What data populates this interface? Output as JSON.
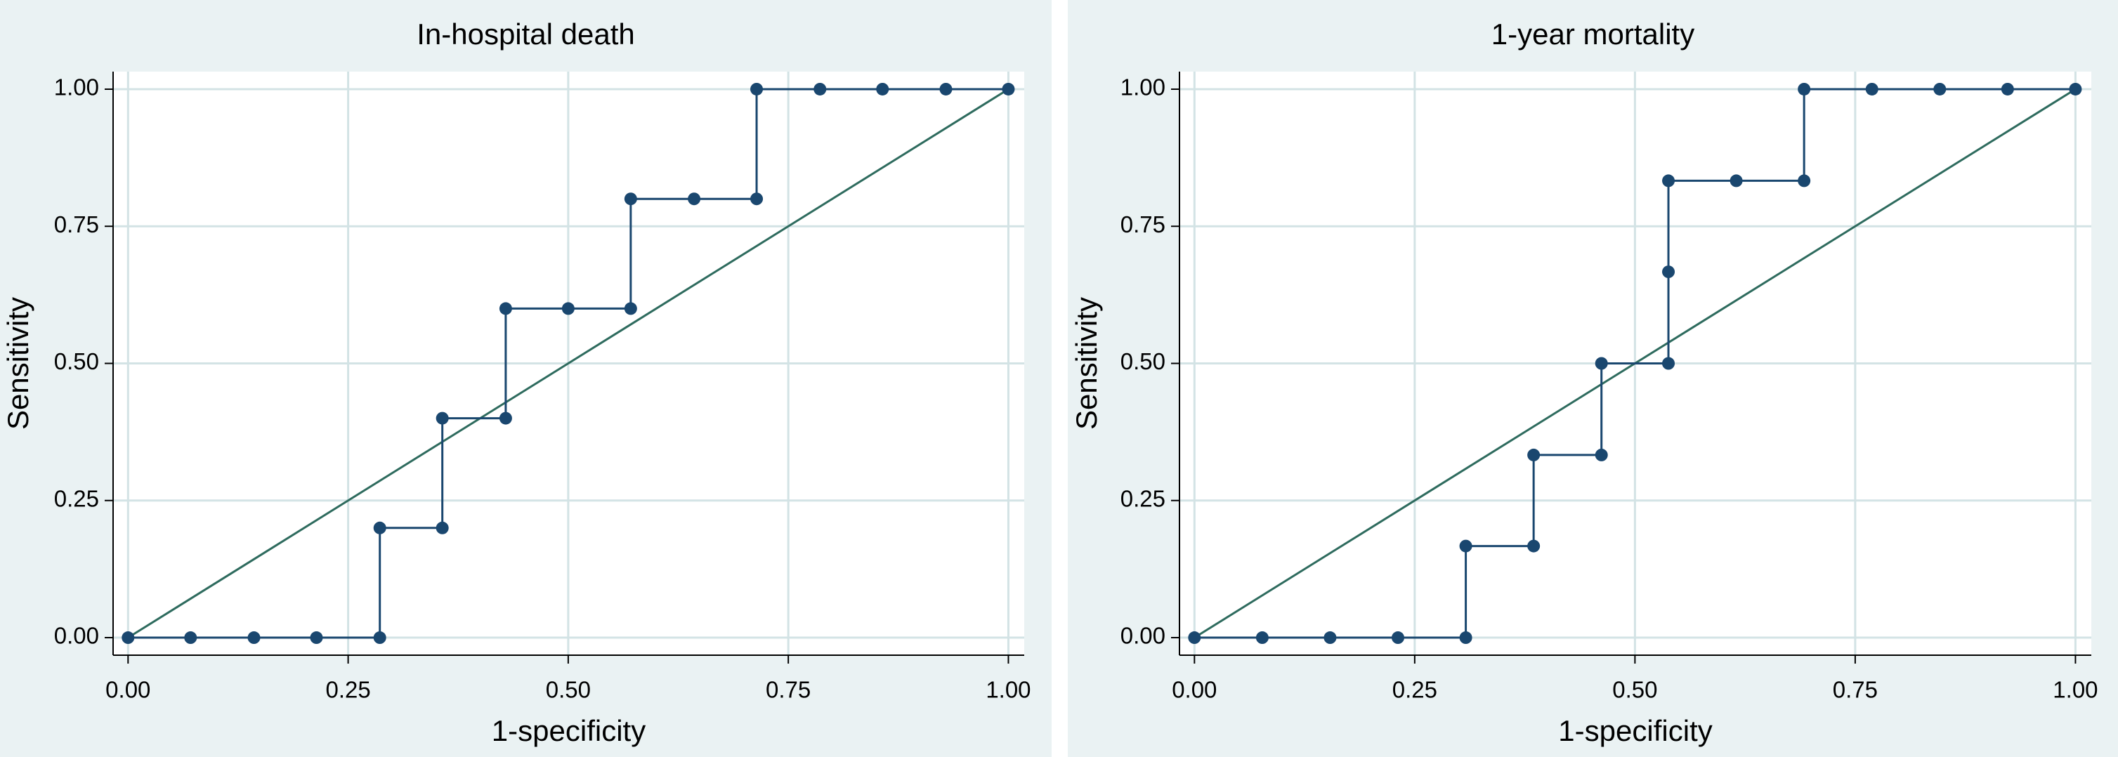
{
  "chart_data": [
    {
      "type": "line",
      "title": "In-hospital death",
      "xlabel": "1-specificity",
      "ylabel": "Sensitivity",
      "x": [
        0,
        0.071,
        0.143,
        0.214,
        0.286,
        0.286,
        0.357,
        0.357,
        0.429,
        0.429,
        0.5,
        0.571,
        0.571,
        0.643,
        0.714,
        0.714,
        0.786,
        0.857,
        0.929,
        1
      ],
      "values": [
        0,
        0,
        0,
        0,
        0,
        0.2,
        0.2,
        0.4,
        0.4,
        0.6,
        0.6,
        0.6,
        0.8,
        0.8,
        0.8,
        1,
        1,
        1,
        1,
        1
      ],
      "color": "#1a476f",
      "reference_color": "#2e6b5e",
      "grid": true,
      "xlim": [
        -0.017,
        1.018
      ],
      "ylim": [
        -0.032,
        1.032
      ],
      "xticks": [
        {
          "value": 0,
          "label": "0.00"
        },
        {
          "value": 0.25,
          "label": "0.25"
        },
        {
          "value": 0.5,
          "label": "0.50"
        },
        {
          "value": 0.75,
          "label": "0.75"
        },
        {
          "value": 1,
          "label": "1.00"
        }
      ],
      "yticks": [
        {
          "value": 0,
          "label": "0.00"
        },
        {
          "value": 0.25,
          "label": "0.25"
        },
        {
          "value": 0.5,
          "label": "0.50"
        },
        {
          "value": 0.75,
          "label": "0.75"
        },
        {
          "value": 1,
          "label": "1.00"
        }
      ]
    },
    {
      "type": "line",
      "title": "1-year mortality",
      "xlabel": "1-specificity",
      "ylabel": "Sensitivity",
      "x": [
        0,
        0.077,
        0.154,
        0.231,
        0.308,
        0.308,
        0.385,
        0.385,
        0.462,
        0.462,
        0.538,
        0.538,
        0.538,
        0.615,
        0.692,
        0.692,
        0.769,
        0.846,
        0.923,
        1
      ],
      "values": [
        0,
        0,
        0,
        0,
        0,
        0.167,
        0.167,
        0.333,
        0.333,
        0.5,
        0.5,
        0.667,
        0.833,
        0.833,
        0.833,
        1,
        1,
        1,
        1,
        1
      ],
      "color": "#1a476f",
      "reference_color": "#2e6b5e",
      "grid": true,
      "xlim": [
        -0.017,
        1.018
      ],
      "ylim": [
        -0.032,
        1.032
      ],
      "xticks": [
        {
          "value": 0,
          "label": "0.00"
        },
        {
          "value": 0.25,
          "label": "0.25"
        },
        {
          "value": 0.5,
          "label": "0.50"
        },
        {
          "value": 0.75,
          "label": "0.75"
        },
        {
          "value": 1,
          "label": "1.00"
        }
      ],
      "yticks": [
        {
          "value": 0,
          "label": "0.00"
        },
        {
          "value": 0.25,
          "label": "0.25"
        },
        {
          "value": 0.5,
          "label": "0.50"
        },
        {
          "value": 0.75,
          "label": "0.75"
        },
        {
          "value": 1,
          "label": "1.00"
        }
      ]
    }
  ]
}
